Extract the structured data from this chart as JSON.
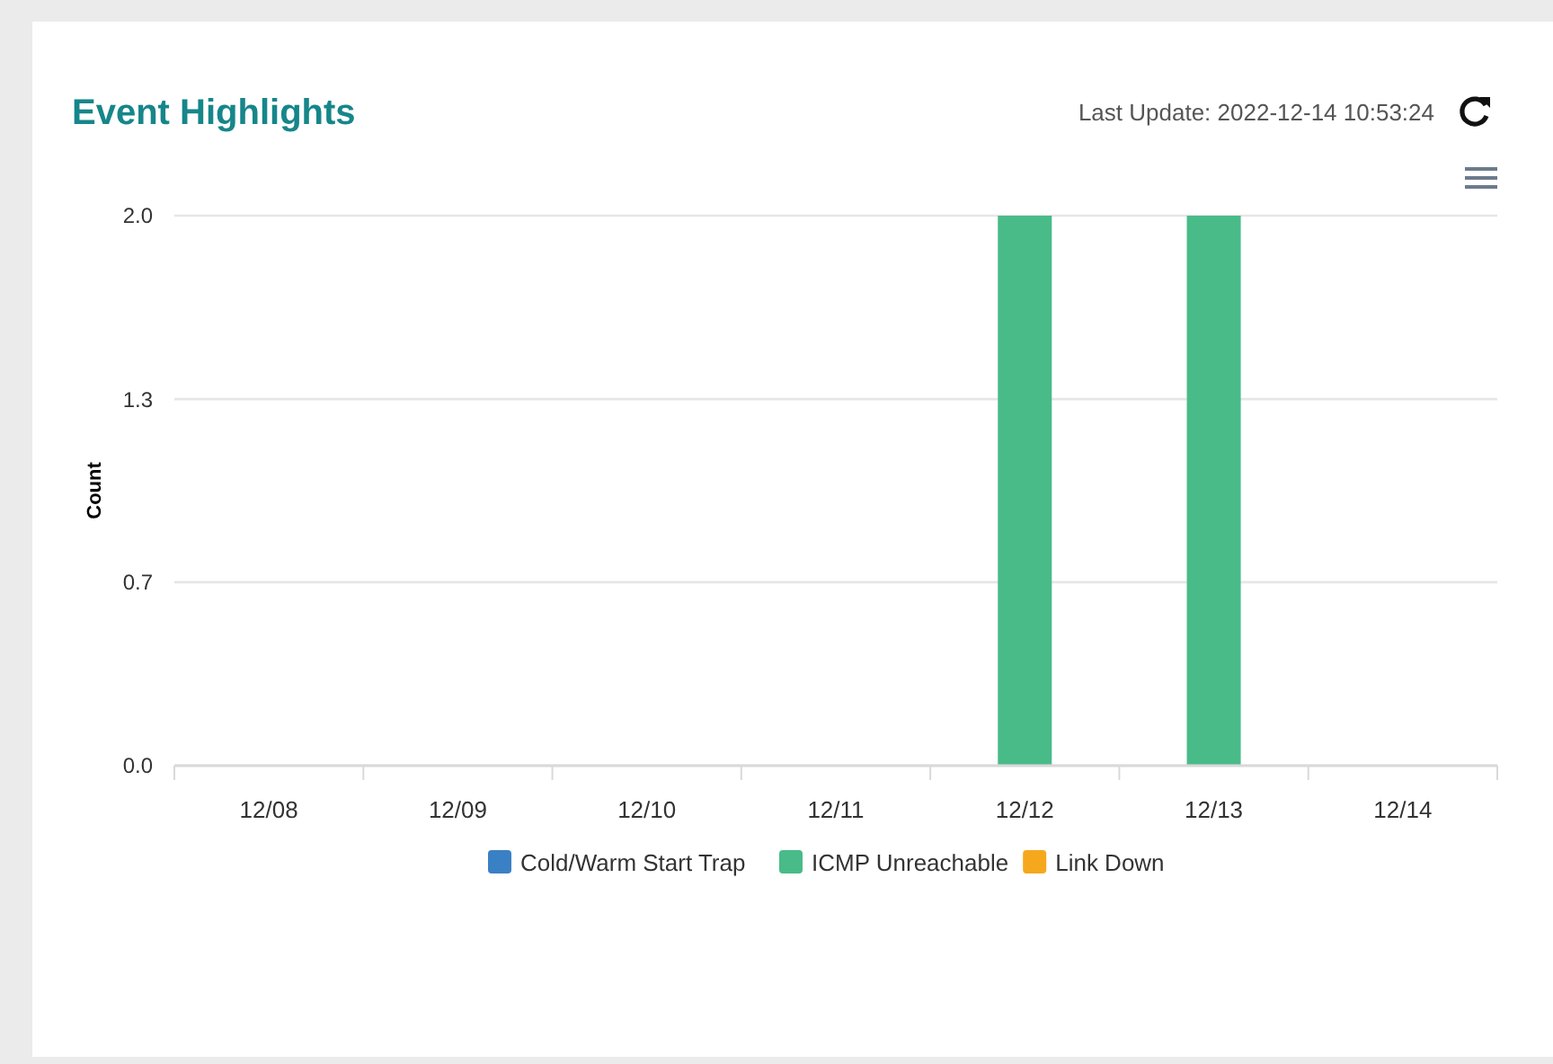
{
  "chart_data": {
    "type": "bar",
    "title": "Event Highlights",
    "annotations": [
      "Last Update: 2022-12-14 10:53:24"
    ],
    "ylabel": "Count",
    "categories": [
      "12/08",
      "12/09",
      "12/10",
      "12/11",
      "12/12",
      "12/13",
      "12/14"
    ],
    "series": [
      {
        "name": "Cold/Warm Start Trap",
        "color": "#3a80c4",
        "values": [
          0,
          0,
          0,
          0,
          0,
          0,
          0
        ]
      },
      {
        "name": "ICMP Unreachable",
        "color": "#48bb88",
        "values": [
          0,
          0,
          0,
          0,
          2,
          2,
          0
        ]
      },
      {
        "name": "Link Down",
        "color": "#f6a81c",
        "values": [
          0,
          0,
          0,
          0,
          0,
          0,
          0
        ]
      }
    ],
    "stacked": true,
    "ylim": [
      0,
      2
    ],
    "yticks": [
      {
        "value": 0,
        "label": "0.0"
      },
      {
        "value": 0.667,
        "label": "0.7"
      },
      {
        "value": 1.333,
        "label": "1.3"
      },
      {
        "value": 2,
        "label": "2.0"
      }
    ],
    "grid": "y",
    "legend": "bottom"
  }
}
